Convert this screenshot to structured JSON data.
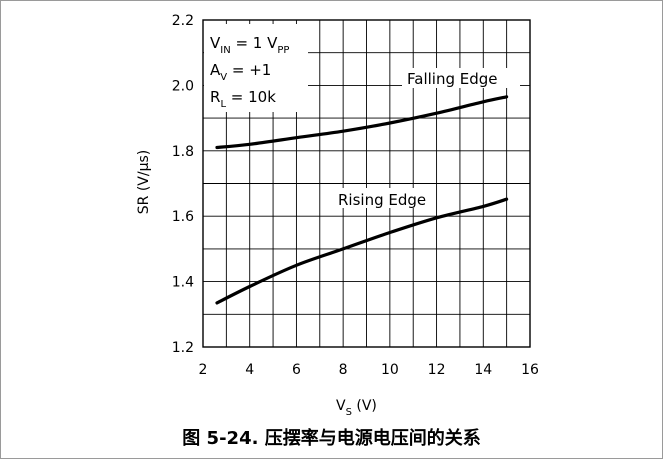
{
  "caption": "图 5-24. 压摆率与电源电压间的关系",
  "chart_data": {
    "type": "line",
    "xlabel": {
      "main": "V",
      "sub": "S",
      "rest": " (V)"
    },
    "ylabel": "SR (V/μs)",
    "xlim": [
      2,
      16
    ],
    "ylim": [
      1.2,
      2.2
    ],
    "x_ticks": [
      2,
      4,
      6,
      8,
      10,
      12,
      14,
      16
    ],
    "x_tick_labels": [
      "2",
      "4",
      "6",
      "8",
      "10",
      "12",
      "14",
      "16"
    ],
    "y_ticks": [
      1.2,
      1.4,
      1.6,
      1.8,
      2.0,
      2.2
    ],
    "y_tick_labels": [
      "1.2",
      "1.4",
      "1.6",
      "1.8",
      "2.0",
      "2.2"
    ],
    "grid": true,
    "annotations": [
      {
        "main": "V",
        "sub": "IN",
        "rest": " = 1 V",
        "sub2": "PP"
      },
      {
        "main": "A",
        "sub": "V",
        "rest": " = +1"
      },
      {
        "main": "R",
        "sub": "L",
        "rest": " = 10k"
      }
    ],
    "series": [
      {
        "name": "Falling Edge",
        "x": [
          2.6,
          4,
          6,
          8,
          10,
          12,
          14,
          15
        ],
        "y": [
          1.81,
          1.82,
          1.84,
          1.86,
          1.885,
          1.915,
          1.95,
          1.965
        ]
      },
      {
        "name": "Rising Edge",
        "x": [
          2.6,
          4,
          6,
          8,
          10,
          12,
          14,
          15
        ],
        "y": [
          1.335,
          1.385,
          1.45,
          1.5,
          1.55,
          1.595,
          1.63,
          1.652
        ]
      }
    ]
  }
}
